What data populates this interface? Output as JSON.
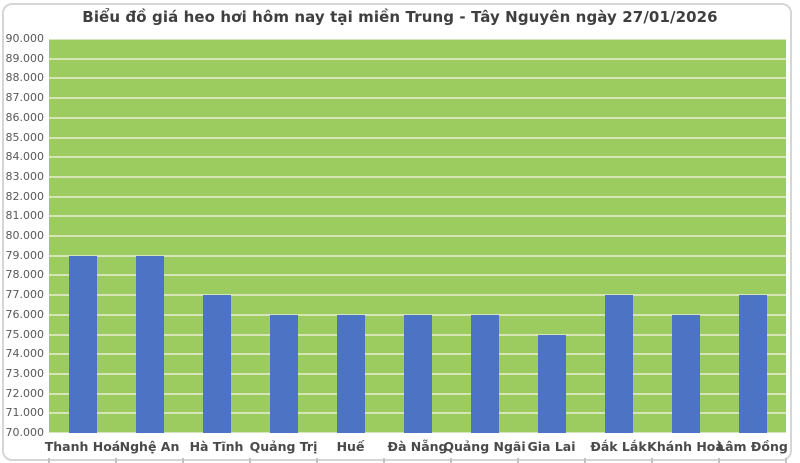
{
  "title": "Biểu đồ giá heo hơi hôm nay tại miền Trung - Tây Nguyên ngày 27/01/2026",
  "chart_data": {
    "type": "bar",
    "title": "Biểu đồ giá heo hơi hôm nay tại miền Trung - Tây Nguyên ngày 27/01/2026",
    "categories": [
      "Thanh Hoá",
      "Nghệ An",
      "Hà Tĩnh",
      "Quảng Trị",
      "Huế",
      "Đà Nẵng",
      "Quảng Ngãi",
      "Gia Lai",
      "Đắk Lắk",
      "Khánh Hoà",
      "Lâm Đồng"
    ],
    "values": [
      79000,
      79000,
      77000,
      76000,
      76000,
      76000,
      76000,
      75000,
      77000,
      76000,
      77000
    ],
    "xlabel": "",
    "ylabel": "",
    "ylim": [
      70000,
      90000
    ],
    "ytick_step": 1000,
    "ytick_labels": [
      "70.000",
      "71.000",
      "72.000",
      "73.000",
      "74.000",
      "75.000",
      "76.000",
      "77.000",
      "78.000",
      "79.000",
      "80.000",
      "81.000",
      "82.000",
      "83.000",
      "84.000",
      "85.000",
      "86.000",
      "87.000",
      "88.000",
      "89.000",
      "90.000"
    ],
    "grid": "horizontal",
    "legend": "none",
    "colors": {
      "bar": "#4D73C4",
      "plot_background": "#9CCB60",
      "gridline": "#D5E5B8",
      "axis_text": "#595959",
      "category_text": "#4A4A4A",
      "title_text": "#3F3F3F",
      "chart_border": "#D6D6D6"
    }
  }
}
